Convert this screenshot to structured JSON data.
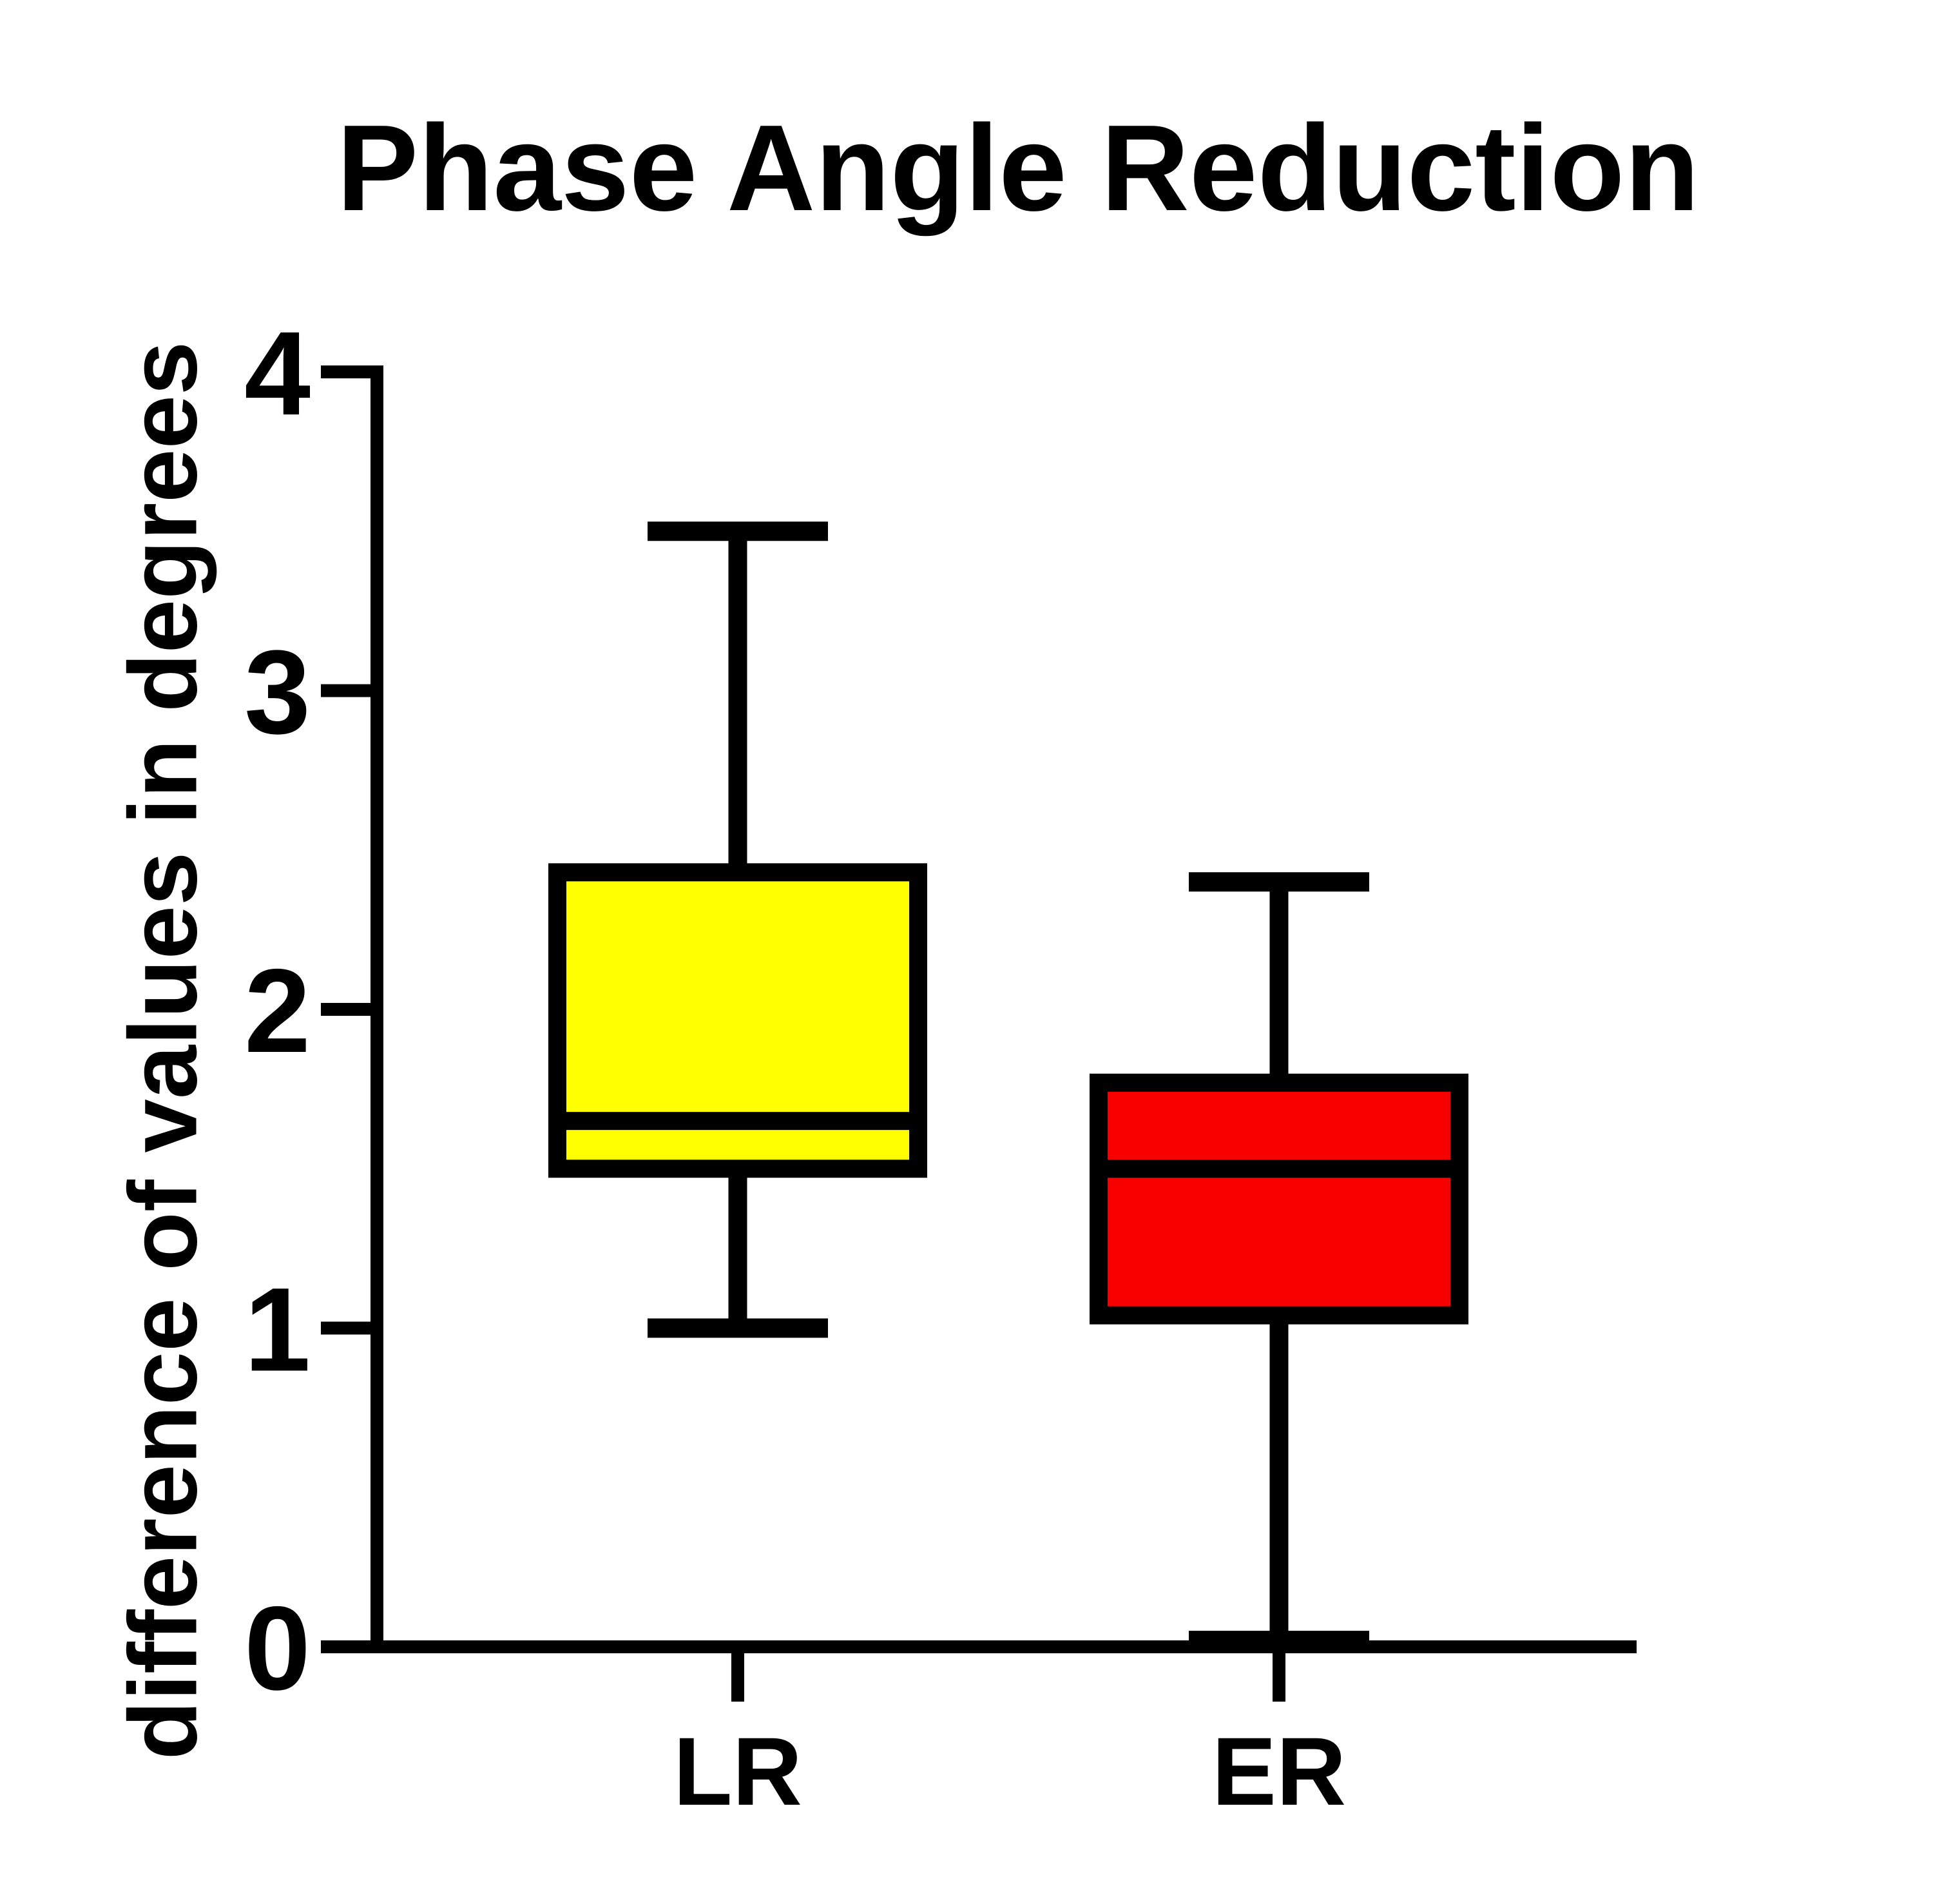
{
  "page": {
    "background": "#ffffff"
  },
  "chart_data": {
    "type": "box",
    "title": "Phase Angle Reduction",
    "ylabel": "difference of values in degrees",
    "xlabel": "",
    "ylim": [
      0,
      4
    ],
    "yticks": [
      4,
      3,
      2,
      1,
      0
    ],
    "grid": false,
    "legend": "none",
    "categories": [
      "LR",
      "ER"
    ],
    "series": [
      {
        "name": "LR",
        "fill": "#FFFF00",
        "whisker_min": 1.0,
        "q1": 1.5,
        "median": 1.65,
        "q3": 2.43,
        "whisker_max": 3.5
      },
      {
        "name": "ER",
        "fill": "#F80000",
        "whisker_min": 0.02,
        "q1": 1.04,
        "median": 1.5,
        "q3": 1.77,
        "whisker_max": 2.4
      }
    ],
    "axis_color": "#000000",
    "text_color": "#000000"
  }
}
